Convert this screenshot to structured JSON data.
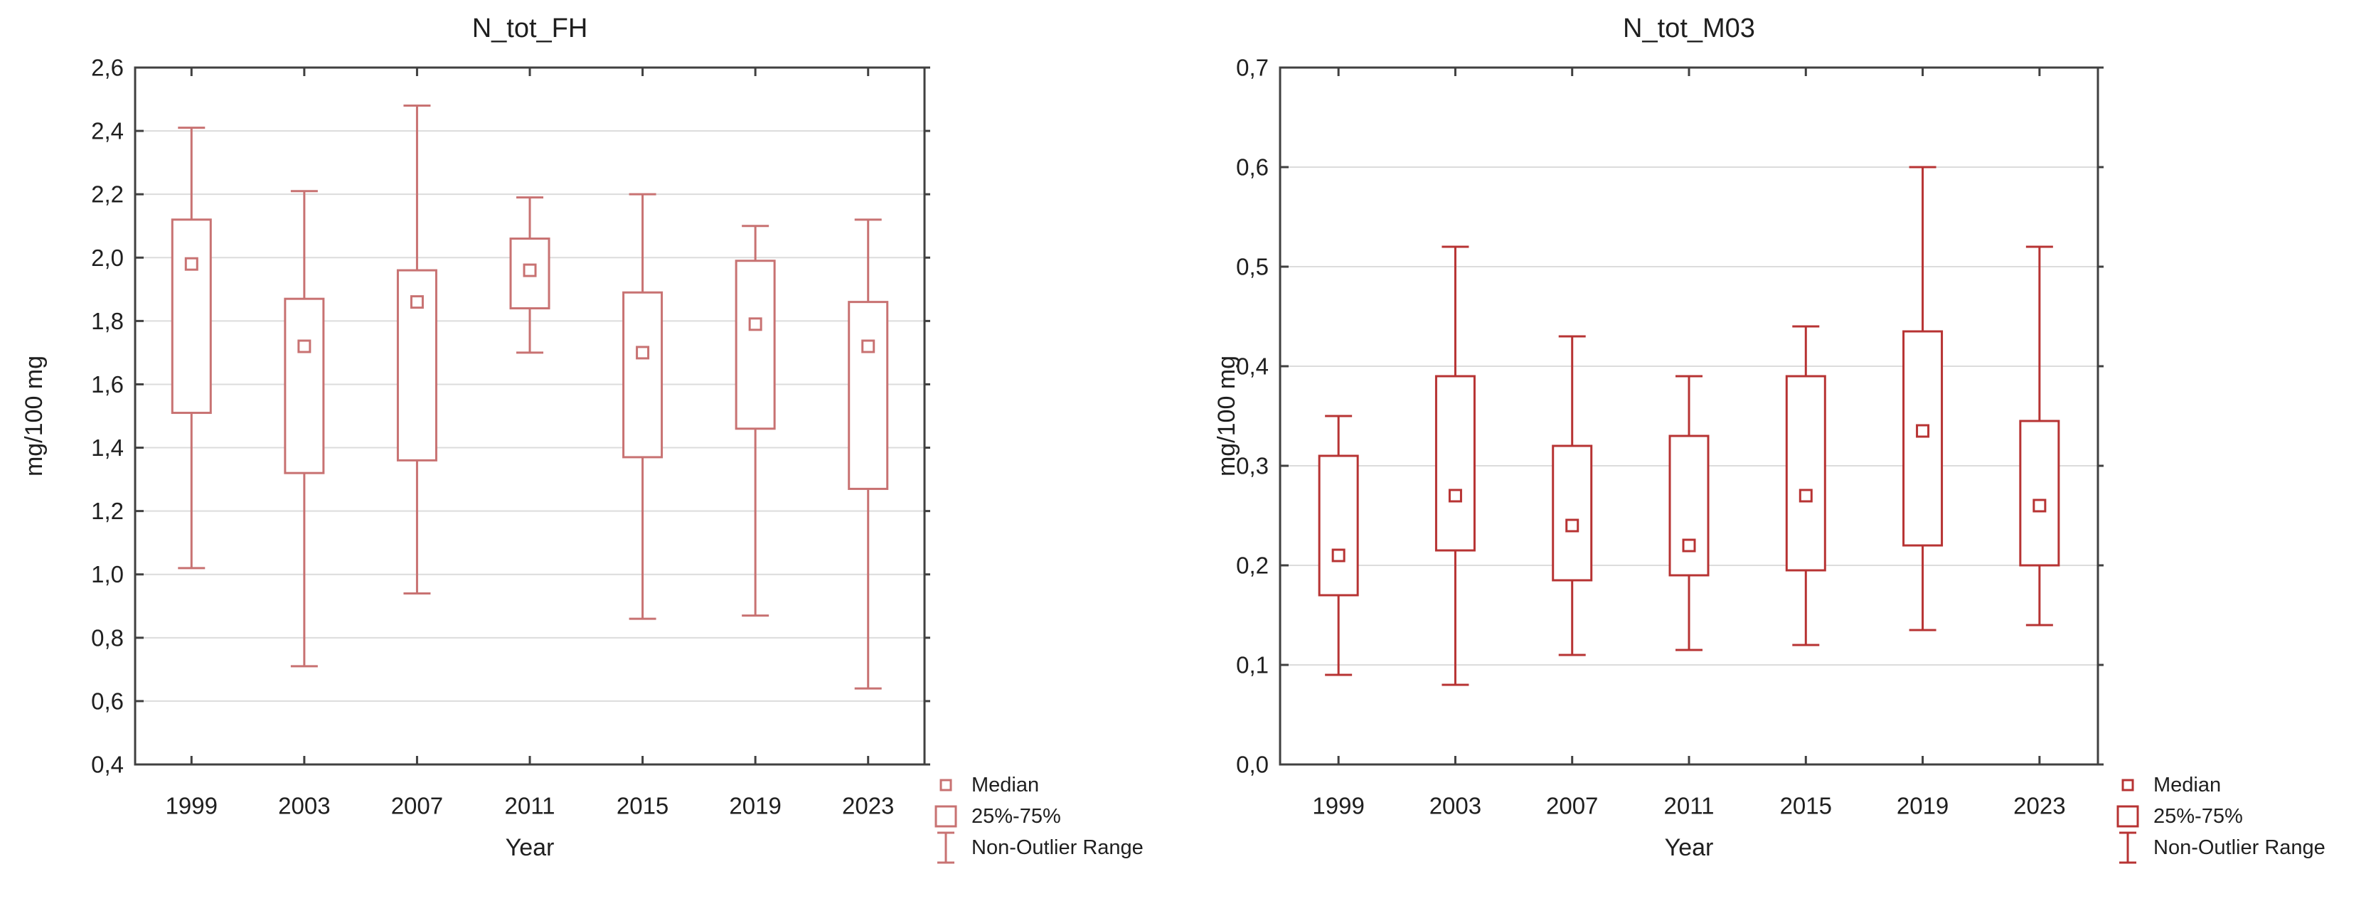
{
  "colors": {
    "background": "#ffffff",
    "frame": "#404040",
    "grid": "#dcdcdc",
    "text": "#1f1f1f",
    "left_accent": "#c87272",
    "right_accent": "#b73333"
  },
  "chart_data": [
    {
      "type": "box",
      "title": "N_tot_FH",
      "ylabel": "mg/100 mg",
      "xlabel": "Year",
      "ylim": [
        0.4,
        2.6
      ],
      "ytick_step": 0.2,
      "yticks": [
        0.4,
        0.6,
        0.8,
        1.0,
        1.2,
        1.4,
        1.6,
        1.8,
        2.0,
        2.2,
        2.4,
        2.6
      ],
      "ytick_labels": [
        "0,4",
        "0,6",
        "0,8",
        "1,0",
        "1,2",
        "1,4",
        "1,6",
        "1,8",
        "2,0",
        "2,2",
        "2,4",
        "2,6"
      ],
      "categories": [
        "1999",
        "2003",
        "2007",
        "2011",
        "2015",
        "2019",
        "2023"
      ],
      "grid": "horizontal",
      "legend_position": "bottom-right",
      "accent_color": "#c87272",
      "legend": [
        "Median",
        "25%-75%",
        "Non-Outlier Range"
      ],
      "series": [
        {
          "year": "1999",
          "whisker_low": 1.02,
          "q1": 1.51,
          "median": 1.98,
          "q3": 2.12,
          "whisker_high": 2.41
        },
        {
          "year": "2003",
          "whisker_low": 0.71,
          "q1": 1.32,
          "median": 1.72,
          "q3": 1.87,
          "whisker_high": 2.21
        },
        {
          "year": "2007",
          "whisker_low": 0.94,
          "q1": 1.36,
          "median": 1.86,
          "q3": 1.96,
          "whisker_high": 2.48
        },
        {
          "year": "2011",
          "whisker_low": 1.7,
          "q1": 1.84,
          "median": 1.96,
          "q3": 2.06,
          "whisker_high": 2.19
        },
        {
          "year": "2015",
          "whisker_low": 0.86,
          "q1": 1.37,
          "median": 1.7,
          "q3": 1.89,
          "whisker_high": 2.2
        },
        {
          "year": "2019",
          "whisker_low": 0.87,
          "q1": 1.46,
          "median": 1.79,
          "q3": 1.99,
          "whisker_high": 2.1
        },
        {
          "year": "2023",
          "whisker_low": 0.64,
          "q1": 1.27,
          "median": 1.72,
          "q3": 1.86,
          "whisker_high": 2.12
        }
      ]
    },
    {
      "type": "box",
      "title": "N_tot_M03",
      "ylabel": "mg/100 mg",
      "xlabel": "Year",
      "ylim": [
        0.0,
        0.7
      ],
      "ytick_step": 0.1,
      "yticks": [
        0.0,
        0.1,
        0.2,
        0.3,
        0.4,
        0.5,
        0.6,
        0.7
      ],
      "ytick_labels": [
        "0,0",
        "0,1",
        "0,2",
        "0,3",
        "0,4",
        "0,5",
        "0,6",
        "0,7"
      ],
      "categories": [
        "1999",
        "2003",
        "2007",
        "2011",
        "2015",
        "2019",
        "2023"
      ],
      "grid": "horizontal",
      "legend_position": "bottom-right",
      "accent_color": "#b73333",
      "legend": [
        "Median",
        "25%-75%",
        "Non-Outlier Range"
      ],
      "series": [
        {
          "year": "1999",
          "whisker_low": 0.09,
          "q1": 0.17,
          "median": 0.21,
          "q3": 0.31,
          "whisker_high": 0.35
        },
        {
          "year": "2003",
          "whisker_low": 0.08,
          "q1": 0.215,
          "median": 0.27,
          "q3": 0.39,
          "whisker_high": 0.52
        },
        {
          "year": "2007",
          "whisker_low": 0.11,
          "q1": 0.185,
          "median": 0.24,
          "q3": 0.32,
          "whisker_high": 0.43
        },
        {
          "year": "2011",
          "whisker_low": 0.115,
          "q1": 0.19,
          "median": 0.22,
          "q3": 0.33,
          "whisker_high": 0.39
        },
        {
          "year": "2015",
          "whisker_low": 0.12,
          "q1": 0.195,
          "median": 0.27,
          "q3": 0.39,
          "whisker_high": 0.44
        },
        {
          "year": "2019",
          "whisker_low": 0.135,
          "q1": 0.22,
          "median": 0.335,
          "q3": 0.435,
          "whisker_high": 0.6
        },
        {
          "year": "2023",
          "whisker_low": 0.14,
          "q1": 0.2,
          "median": 0.26,
          "q3": 0.345,
          "whisker_high": 0.52
        }
      ]
    }
  ]
}
